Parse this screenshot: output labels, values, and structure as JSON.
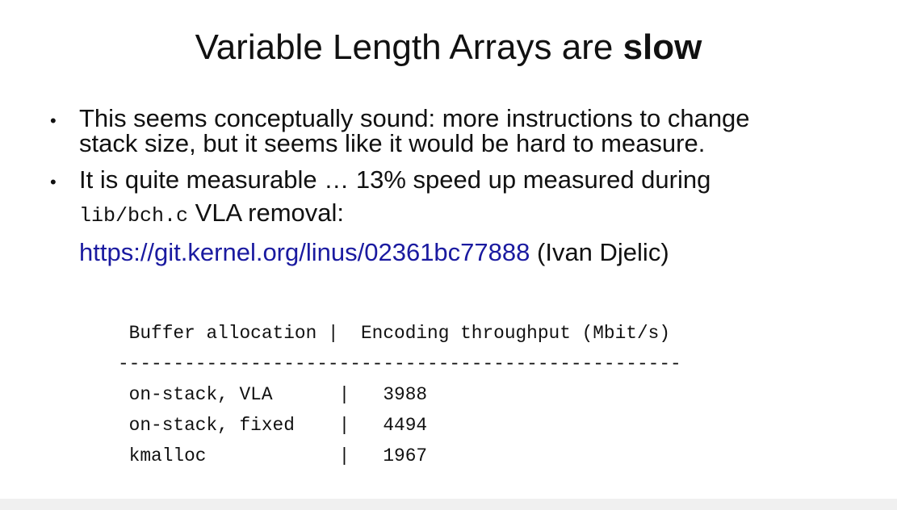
{
  "slide": {
    "title_normal": "Variable Length Arrays are ",
    "title_bold": "slow",
    "bullets": [
      {
        "line1": "This seems conceptually sound: more instructions to change",
        "line2": "stack size, but it seems like it would be hard to measure."
      },
      {
        "line1": "It is quite measurable … 13% speed up measured during",
        "code": "lib/bch.c",
        "line2_rest": " VLA removal:"
      }
    ],
    "link": {
      "url_text": "https://git.kernel.org/linus/02361bc77888",
      "suffix": " (Ivan Djelic)"
    },
    "table": {
      "header": " Buffer allocation |  Encoding throughput (Mbit/s)",
      "separator": "---------------------------------------------------",
      "rows": [
        " on-stack, VLA      |   3988",
        " on-stack, fixed    |   4494",
        " kmalloc            |   1967"
      ]
    }
  }
}
